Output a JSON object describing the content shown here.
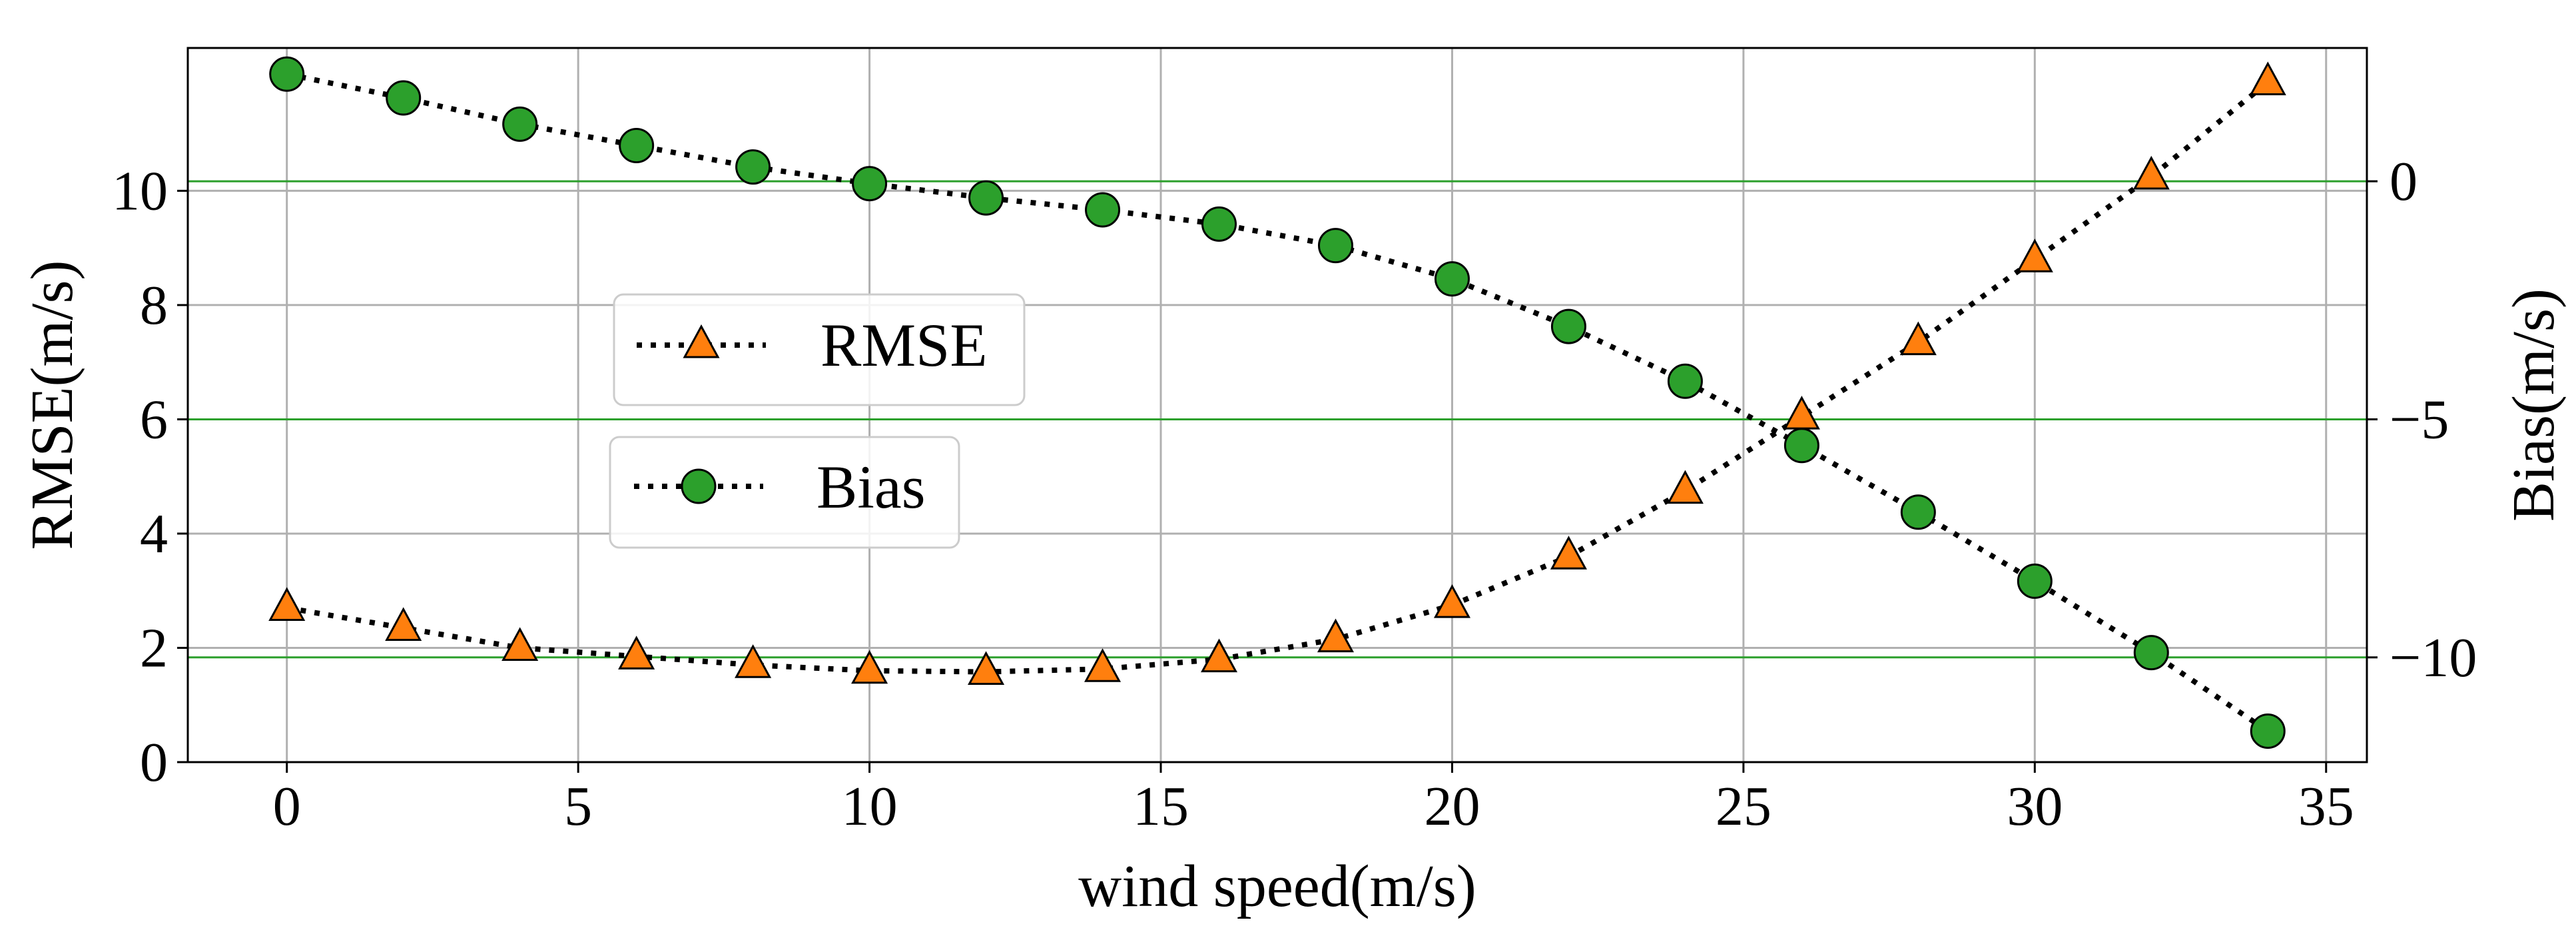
{
  "chart_data": {
    "type": "line",
    "title": "",
    "xlabel": "wind speed(m/s)",
    "ylabel": "RMSE(m/s)",
    "ylabel_right": "Bias(m/s)",
    "x": [
      0,
      2,
      4,
      6,
      8,
      10,
      12,
      14,
      16,
      18,
      20,
      22,
      24,
      26,
      28,
      30,
      32,
      34
    ],
    "xlim": [
      -1.7,
      35.7
    ],
    "ylim": [
      0,
      12.5
    ],
    "ylim_right": [
      -12.2,
      2.8
    ],
    "x_ticks": [
      0,
      5,
      10,
      15,
      20,
      25,
      30,
      35
    ],
    "x_tick_labels": [
      "0",
      "5",
      "10",
      "15",
      "20",
      "25",
      "30",
      "35"
    ],
    "y_ticks": [
      0,
      2,
      4,
      6,
      8,
      10
    ],
    "y_tick_labels": [
      "0",
      "2",
      "4",
      "6",
      "8",
      "10"
    ],
    "y_ticks_right": [
      0,
      -5,
      -10
    ],
    "y_tick_labels_right": [
      "0",
      "−5",
      "−10"
    ],
    "grid": true,
    "series": [
      {
        "name": "RMSE",
        "axis": "left",
        "marker": "triangle",
        "color": "#ff7f0e",
        "line_style": "dotted",
        "values": [
          2.7,
          2.35,
          2.0,
          1.85,
          1.7,
          1.6,
          1.58,
          1.63,
          1.8,
          2.15,
          2.75,
          3.6,
          4.75,
          6.05,
          7.35,
          8.8,
          10.25,
          11.9
        ]
      },
      {
        "name": "Bias",
        "axis": "right",
        "marker": "circle",
        "color": "#2ca02c",
        "line_style": "dotted",
        "values": [
          2.25,
          1.75,
          1.2,
          0.75,
          0.3,
          -0.05,
          -0.35,
          -0.6,
          -0.9,
          -1.35,
          -2.05,
          -3.05,
          -4.2,
          -5.55,
          -6.95,
          -8.4,
          -9.9,
          -11.55
        ]
      }
    ],
    "reference_lines": {
      "axis": "right",
      "values": [
        0,
        -5,
        -10
      ],
      "color": "#2ca02c"
    },
    "legend": [
      {
        "label": "RMSE",
        "placement": "center-left"
      },
      {
        "label": "Bias",
        "placement": "center-left"
      }
    ]
  }
}
